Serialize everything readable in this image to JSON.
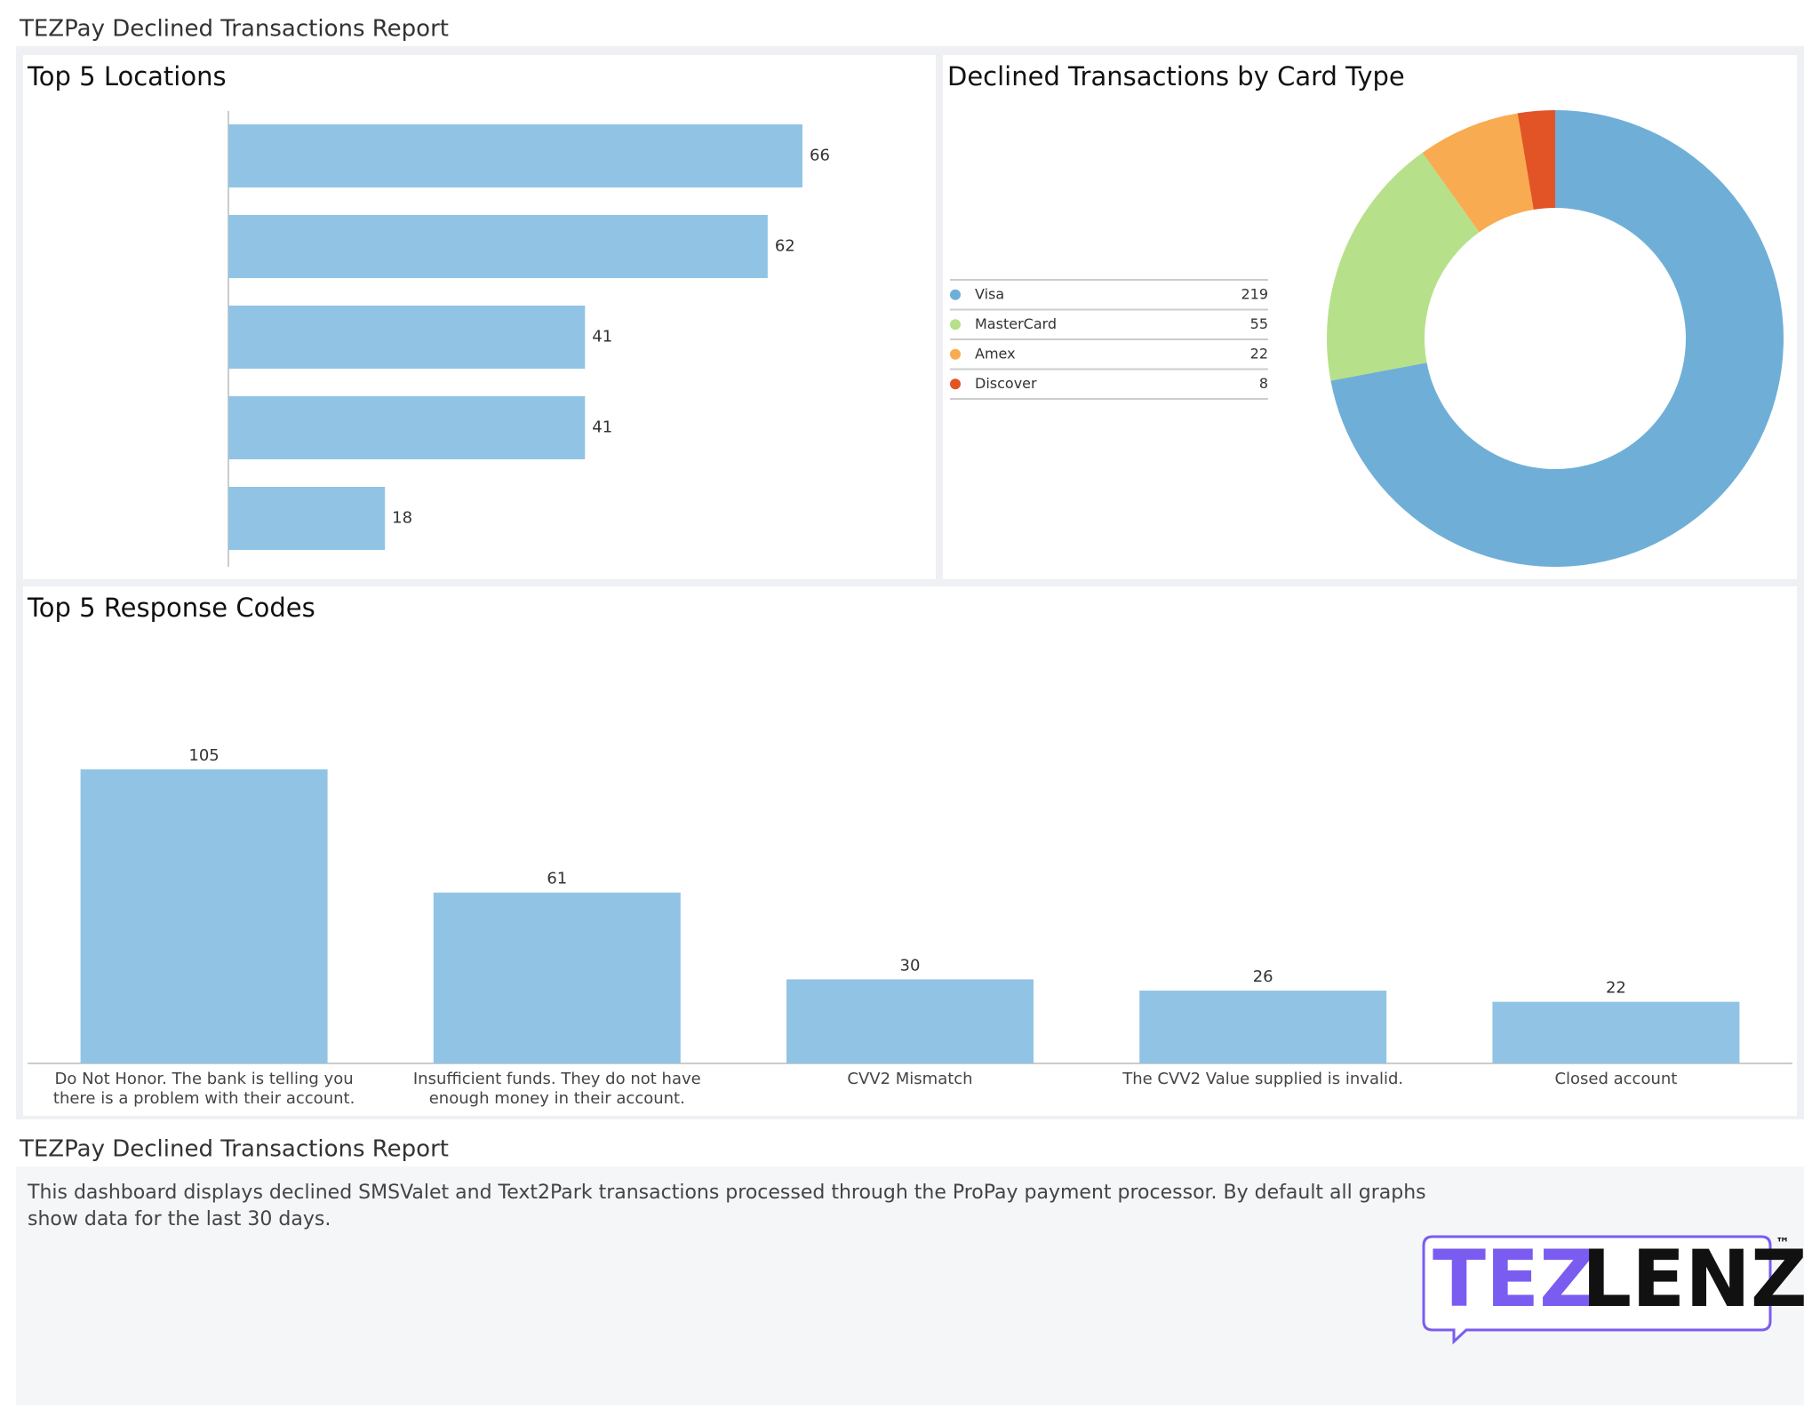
{
  "header": {
    "title": "TEZPay Declined Transactions Report"
  },
  "chart_data": [
    {
      "type": "hbar",
      "title": "Top 5 Locations",
      "categories": [
        null,
        null,
        null,
        null,
        null
      ],
      "values": [
        66,
        62,
        41,
        41,
        18
      ],
      "color": "#91c4e4"
    },
    {
      "type": "donut",
      "title": "Declined Transactions by Card Type",
      "categories": [
        "Visa",
        "MasterCard",
        "Amex",
        "Discover"
      ],
      "values": [
        219,
        55,
        22,
        8
      ],
      "colors": [
        "#6fafd7",
        "#b7e08a",
        "#f8ab50",
        "#e25426"
      ]
    },
    {
      "type": "bar",
      "title": "Top 5 Response Codes",
      "categories": [
        "Do Not Honor.  The bank is telling you there is a problem with their account.",
        "Insufficient funds. They do not have enough money in their account.",
        "CVV2 Mismatch",
        "The CVV2 Value supplied is invalid.",
        "Closed account"
      ],
      "values": [
        105,
        61,
        30,
        26,
        22
      ],
      "color": "#91c4e4"
    }
  ],
  "footer": {
    "title": "TEZPay Declined Transactions Report",
    "text": "This dashboard displays declined SMSValet and Text2Park transactions processed through the ProPay payment processor. By default all graphs show data for the last 30 days.",
    "logo": {
      "part1": "TEZ",
      "part2": "LENZ",
      "mark": "™"
    }
  }
}
